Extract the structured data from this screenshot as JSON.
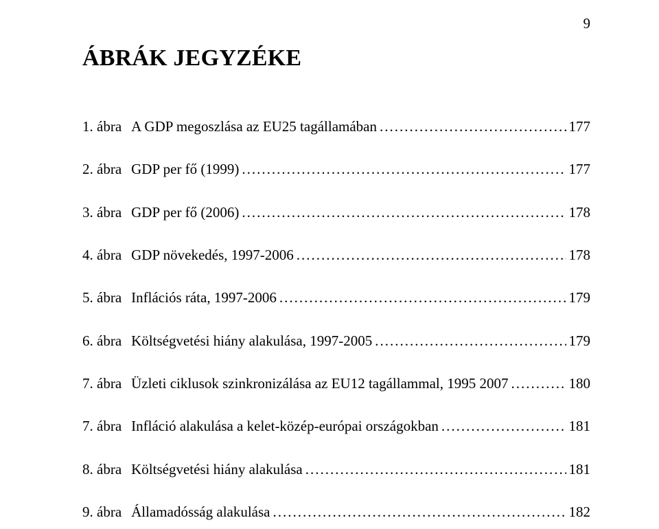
{
  "page_number": "9",
  "title": "ÁBRÁK JEGYZÉKE",
  "entries": [
    {
      "num": "1. ábra",
      "label": "A GDP megoszlása az EU25 tagállamában",
      "page": "177"
    },
    {
      "num": "2. ábra",
      "label": "GDP per fő (1999)",
      "page": "177"
    },
    {
      "num": "3. ábra",
      "label": "GDP per fő (2006)",
      "page": "178"
    },
    {
      "num": "4. ábra",
      "label": "GDP növekedés, 1997-2006",
      "page": "178"
    },
    {
      "num": "5. ábra",
      "label": "Inflációs ráta, 1997-2006",
      "page": "179"
    },
    {
      "num": "6. ábra",
      "label": "Költségvetési hiány alakulása, 1997-2005",
      "page": "179"
    },
    {
      "num": "7. ábra",
      "label": "Üzleti ciklusok szinkronizálása az EU12 tagállammal, 1995 2007",
      "page": "180"
    },
    {
      "num": "7. ábra",
      "label": "Infláció alakulása a kelet-közép-európai országokban",
      "page": "181"
    },
    {
      "num": "8. ábra",
      "label": "Költségvetési hiány alakulása",
      "page": "181"
    },
    {
      "num": "9. ábra",
      "label": "Államadósság alakulása",
      "page": "182"
    }
  ],
  "colors": {
    "background": "#ffffff",
    "text": "#000000"
  },
  "typography": {
    "title_fontsize_pt": 24,
    "body_fontsize_pt": 16,
    "font_family": "Times New Roman"
  }
}
